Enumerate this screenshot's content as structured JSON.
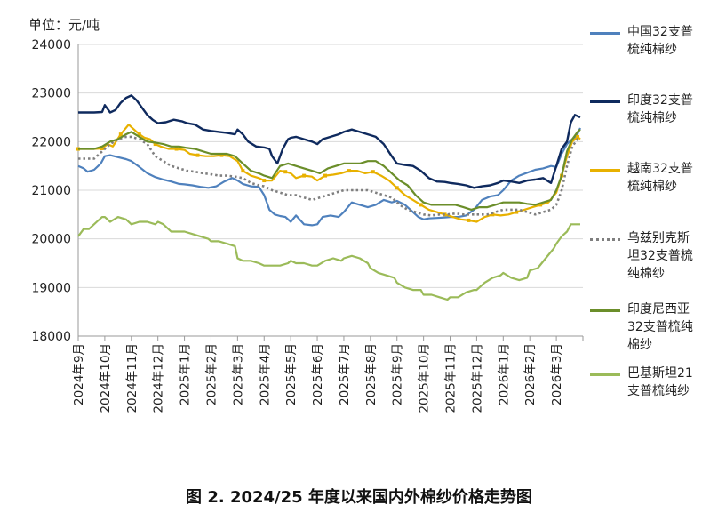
{
  "unit_label": "单位：元/吨",
  "caption": "图 2. 2024/25 年度以来国内外棉纱价格走势图",
  "legend": [
    {
      "lines": [
        "中国32支普",
        "梳纯棉纱"
      ]
    },
    {
      "lines": [
        "印度32支普",
        "梳纯棉纱"
      ]
    },
    {
      "lines": [
        "越南32支普",
        "梳纯棉纱"
      ]
    },
    {
      "lines": [
        "乌兹别克斯",
        "坦32支普梳",
        "纯棉纱"
      ]
    },
    {
      "lines": [
        "印度尼西亚",
        "32支普梳纯",
        "棉纱"
      ]
    },
    {
      "lines": [
        "巴基斯坦21",
        "支普梳纯纱"
      ]
    }
  ],
  "chart_data": {
    "type": "line",
    "title": "图 2. 2024/25 年度以来国内外棉纱价格走势图",
    "ylabel": "单位：元/吨",
    "ylim": [
      18000,
      24000
    ],
    "yticks": [
      18000,
      19000,
      20000,
      21000,
      22000,
      23000,
      24000
    ],
    "x_range": [
      0,
      19
    ],
    "categories": [
      "2024年9月",
      "2024年10月",
      "2024年11月",
      "2024年12月",
      "2025年1月",
      "2025年2月",
      "2025年3月",
      "2025年4月",
      "2025年5月",
      "2025年6月",
      "2025年7月",
      "2025年8月",
      "2025年9月",
      "2025年10月",
      "2025年11月",
      "2025年12月",
      "2026年1月",
      "2026年2月",
      "2026年3月"
    ],
    "grid": "horizontal",
    "legend_position": "right",
    "series": [
      {
        "name": "中国32支普梳纯棉纱",
        "color": "#4f81bd",
        "style": "solid",
        "x": [
          0,
          0.2,
          0.35,
          0.6,
          0.85,
          1.0,
          1.2,
          1.5,
          1.8,
          2.0,
          2.3,
          2.6,
          2.9,
          3.2,
          3.5,
          3.8,
          4.0,
          4.3,
          4.6,
          4.9,
          5.2,
          5.5,
          5.8,
          6.0,
          6.2,
          6.5,
          6.8,
          7.0,
          7.2,
          7.4,
          7.6,
          7.8,
          8.0,
          8.2,
          8.5,
          8.8,
          9.0,
          9.2,
          9.5,
          9.8,
          10.0,
          10.3,
          10.6,
          10.9,
          11.2,
          11.5,
          11.8,
          12.0,
          12.3,
          12.6,
          12.8,
          13.0,
          13.2,
          13.5,
          13.8,
          14.0,
          14.3,
          14.6,
          14.9,
          15.2,
          15.5,
          15.8,
          16.0,
          16.3,
          16.6,
          16.9,
          17.2,
          17.5,
          17.8,
          18.0,
          18.2,
          18.4,
          18.6,
          18.75,
          18.9
        ],
        "values": [
          21500,
          21450,
          21380,
          21420,
          21550,
          21700,
          21720,
          21680,
          21640,
          21600,
          21480,
          21350,
          21270,
          21220,
          21180,
          21130,
          21120,
          21100,
          21070,
          21050,
          21080,
          21180,
          21250,
          21200,
          21130,
          21080,
          21070,
          20900,
          20600,
          20500,
          20470,
          20450,
          20350,
          20480,
          20300,
          20280,
          20300,
          20450,
          20480,
          20450,
          20550,
          20750,
          20700,
          20650,
          20700,
          20800,
          20750,
          20780,
          20700,
          20550,
          20450,
          20400,
          20420,
          20430,
          20440,
          20450,
          20450,
          20480,
          20600,
          20800,
          20870,
          20900,
          21000,
          21200,
          21300,
          21360,
          21420,
          21450,
          21500,
          21480,
          21750,
          21950,
          22050,
          22100,
          22280
        ]
      },
      {
        "name": "印度32支普梳纯棉纱",
        "color": "#0f2a5e",
        "style": "solid",
        "x": [
          0,
          0.3,
          0.6,
          0.9,
          1.0,
          1.2,
          1.4,
          1.6,
          1.8,
          2.0,
          2.2,
          2.4,
          2.6,
          2.8,
          3.0,
          3.3,
          3.6,
          3.9,
          4.1,
          4.4,
          4.7,
          5.0,
          5.3,
          5.6,
          5.9,
          6.0,
          6.2,
          6.4,
          6.7,
          7.0,
          7.2,
          7.3,
          7.5,
          7.7,
          7.9,
          8.0,
          8.2,
          8.5,
          8.8,
          9.0,
          9.2,
          9.5,
          9.8,
          10.0,
          10.3,
          10.6,
          10.9,
          11.2,
          11.5,
          11.8,
          12.0,
          12.3,
          12.6,
          12.9,
          13.2,
          13.5,
          13.8,
          14.0,
          14.3,
          14.6,
          14.9,
          15.2,
          15.5,
          15.8,
          16.0,
          16.3,
          16.6,
          16.9,
          17.2,
          17.5,
          17.8,
          18.0,
          18.2,
          18.4,
          18.55,
          18.7,
          18.9
        ],
        "values": [
          22600,
          22600,
          22600,
          22610,
          22750,
          22600,
          22650,
          22800,
          22900,
          22950,
          22850,
          22700,
          22550,
          22450,
          22380,
          22400,
          22450,
          22420,
          22380,
          22350,
          22250,
          22220,
          22200,
          22180,
          22150,
          22250,
          22150,
          22000,
          21900,
          21880,
          21850,
          21700,
          21550,
          21850,
          22050,
          22080,
          22100,
          22050,
          22000,
          21950,
          22050,
          22100,
          22150,
          22200,
          22250,
          22200,
          22150,
          22100,
          21950,
          21700,
          21550,
          21520,
          21500,
          21400,
          21250,
          21180,
          21170,
          21150,
          21130,
          21100,
          21050,
          21080,
          21100,
          21150,
          21200,
          21180,
          21150,
          21200,
          21220,
          21250,
          21150,
          21500,
          21850,
          22000,
          22400,
          22550,
          22500
        ]
      },
      {
        "name": "越南32支普梳纯棉纱",
        "color": "#e8b100",
        "style": "solid_markers",
        "x": [
          0,
          0.3,
          0.6,
          0.9,
          1.1,
          1.3,
          1.6,
          1.9,
          2.1,
          2.3,
          2.5,
          2.7,
          2.9,
          3.1,
          3.4,
          3.7,
          4.0,
          4.2,
          4.5,
          4.8,
          5.1,
          5.4,
          5.7,
          6.0,
          6.2,
          6.5,
          6.8,
          7.0,
          7.3,
          7.6,
          7.8,
          8.0,
          8.2,
          8.5,
          8.8,
          9.0,
          9.3,
          9.6,
          9.9,
          10.2,
          10.5,
          10.8,
          11.1,
          11.4,
          11.7,
          12.0,
          12.3,
          12.6,
          12.9,
          13.2,
          13.5,
          13.8,
          14.1,
          14.4,
          14.7,
          15.0,
          15.3,
          15.6,
          15.9,
          16.2,
          16.5,
          16.8,
          17.1,
          17.4,
          17.7,
          18.0,
          18.2,
          18.4,
          18.6,
          18.8,
          18.9
        ],
        "values": [
          21850,
          21850,
          21850,
          21860,
          21950,
          21900,
          22150,
          22350,
          22250,
          22150,
          22080,
          22050,
          21950,
          21900,
          21850,
          21850,
          21830,
          21750,
          21720,
          21700,
          21700,
          21720,
          21700,
          21600,
          21400,
          21300,
          21250,
          21200,
          21200,
          21400,
          21380,
          21350,
          21250,
          21300,
          21280,
          21200,
          21300,
          21320,
          21350,
          21400,
          21400,
          21350,
          21380,
          21300,
          21200,
          21050,
          20900,
          20800,
          20700,
          20600,
          20550,
          20500,
          20450,
          20400,
          20380,
          20350,
          20450,
          20500,
          20480,
          20500,
          20550,
          20600,
          20650,
          20700,
          20750,
          20950,
          21300,
          21700,
          22000,
          22100,
          22050
        ]
      },
      {
        "name": "乌兹别克斯坦32支普梳纯棉纱",
        "color": "#7f7f7f",
        "style": "dotted",
        "x": [
          0,
          0.3,
          0.6,
          0.9,
          1.2,
          1.5,
          1.8,
          2.0,
          2.3,
          2.6,
          2.9,
          3.2,
          3.5,
          3.8,
          4.1,
          4.4,
          4.7,
          5.0,
          5.3,
          5.6,
          5.9,
          6.2,
          6.5,
          6.8,
          7.0,
          7.3,
          7.6,
          7.9,
          8.2,
          8.5,
          8.8,
          9.1,
          9.4,
          9.7,
          10.0,
          10.3,
          10.6,
          10.9,
          11.2,
          11.5,
          11.8,
          12.1,
          12.4,
          12.7,
          13.0,
          13.3,
          13.6,
          13.9,
          14.2,
          14.5,
          14.8,
          15.1,
          15.4,
          15.7,
          16.0,
          16.3,
          16.6,
          16.9,
          17.2,
          17.5,
          17.8,
          18.0,
          18.2,
          18.4,
          18.6,
          18.8,
          18.9
        ],
        "values": [
          21650,
          21650,
          21650,
          21800,
          21950,
          22050,
          22100,
          22100,
          22050,
          21950,
          21700,
          21600,
          21500,
          21450,
          21400,
          21380,
          21350,
          21330,
          21300,
          21300,
          21280,
          21250,
          21150,
          21100,
          21080,
          21000,
          20950,
          20900,
          20900,
          20850,
          20800,
          20850,
          20900,
          20950,
          21000,
          21000,
          21000,
          21000,
          20950,
          20900,
          20850,
          20700,
          20600,
          20550,
          20500,
          20480,
          20500,
          20500,
          20520,
          20500,
          20500,
          20500,
          20500,
          20550,
          20600,
          20600,
          20600,
          20550,
          20500,
          20550,
          20600,
          20700,
          21000,
          21500,
          21900,
          22050,
          22080
        ]
      },
      {
        "name": "印度尼西亚32支普梳纯棉纱",
        "color": "#6b8e2a",
        "style": "solid",
        "x": [
          0,
          0.3,
          0.6,
          0.9,
          1.2,
          1.5,
          1.8,
          2.0,
          2.3,
          2.6,
          2.9,
          3.2,
          3.5,
          3.8,
          4.1,
          4.4,
          4.7,
          5.0,
          5.3,
          5.6,
          5.9,
          6.2,
          6.5,
          6.8,
          7.0,
          7.3,
          7.6,
          7.9,
          8.2,
          8.5,
          8.8,
          9.1,
          9.4,
          9.7,
          10.0,
          10.3,
          10.6,
          10.9,
          11.2,
          11.5,
          11.8,
          12.1,
          12.4,
          12.7,
          13.0,
          13.3,
          13.6,
          13.9,
          14.2,
          14.5,
          14.8,
          15.1,
          15.4,
          15.7,
          16.0,
          16.3,
          16.6,
          16.9,
          17.2,
          17.5,
          17.8,
          18.0,
          18.2,
          18.4,
          18.6,
          18.8,
          18.9
        ],
        "values": [
          21850,
          21850,
          21850,
          21900,
          22000,
          22050,
          22150,
          22200,
          22100,
          22000,
          21980,
          21950,
          21900,
          21900,
          21870,
          21850,
          21800,
          21750,
          21750,
          21750,
          21700,
          21550,
          21400,
          21350,
          21300,
          21250,
          21500,
          21550,
          21500,
          21450,
          21400,
          21350,
          21450,
          21500,
          21550,
          21550,
          21550,
          21600,
          21600,
          21500,
          21350,
          21200,
          21100,
          20900,
          20750,
          20700,
          20700,
          20700,
          20700,
          20650,
          20600,
          20650,
          20650,
          20700,
          20750,
          20750,
          20750,
          20720,
          20700,
          20750,
          20800,
          21000,
          21300,
          21800,
          22050,
          22200,
          22250
        ]
      },
      {
        "name": "巴基斯坦21支普梳纯纱",
        "color": "#9bbb59",
        "style": "solid",
        "x": [
          0,
          0.2,
          0.4,
          0.7,
          0.9,
          1.0,
          1.2,
          1.5,
          1.8,
          2.0,
          2.3,
          2.6,
          2.9,
          3.0,
          3.2,
          3.5,
          3.8,
          4.0,
          4.3,
          4.6,
          4.9,
          5.0,
          5.3,
          5.6,
          5.9,
          6.0,
          6.2,
          6.5,
          6.8,
          7.0,
          7.3,
          7.6,
          7.9,
          8.0,
          8.2,
          8.5,
          8.8,
          9.0,
          9.3,
          9.6,
          9.9,
          10.0,
          10.3,
          10.6,
          10.9,
          11.0,
          11.3,
          11.6,
          11.9,
          12.0,
          12.3,
          12.6,
          12.9,
          13.0,
          13.3,
          13.6,
          13.9,
          14.0,
          14.3,
          14.6,
          14.9,
          15.0,
          15.3,
          15.6,
          15.9,
          16.0,
          16.3,
          16.6,
          16.9,
          17.0,
          17.3,
          17.6,
          17.9,
          18.0,
          18.2,
          18.4,
          18.55,
          18.7,
          18.9
        ],
        "values": [
          20050,
          20200,
          20200,
          20350,
          20450,
          20450,
          20350,
          20450,
          20400,
          20300,
          20350,
          20350,
          20300,
          20350,
          20300,
          20150,
          20150,
          20150,
          20100,
          20050,
          20000,
          19950,
          19950,
          19900,
          19850,
          19600,
          19550,
          19550,
          19500,
          19450,
          19450,
          19450,
          19500,
          19550,
          19500,
          19500,
          19450,
          19450,
          19550,
          19600,
          19550,
          19600,
          19650,
          19600,
          19500,
          19400,
          19300,
          19250,
          19200,
          19100,
          19000,
          18950,
          18950,
          18850,
          18850,
          18800,
          18750,
          18800,
          18800,
          18900,
          18950,
          18950,
          19100,
          19200,
          19250,
          19300,
          19200,
          19150,
          19200,
          19350,
          19400,
          19600,
          19800,
          19900,
          20050,
          20150,
          20300,
          20300,
          20300
        ]
      }
    ]
  }
}
